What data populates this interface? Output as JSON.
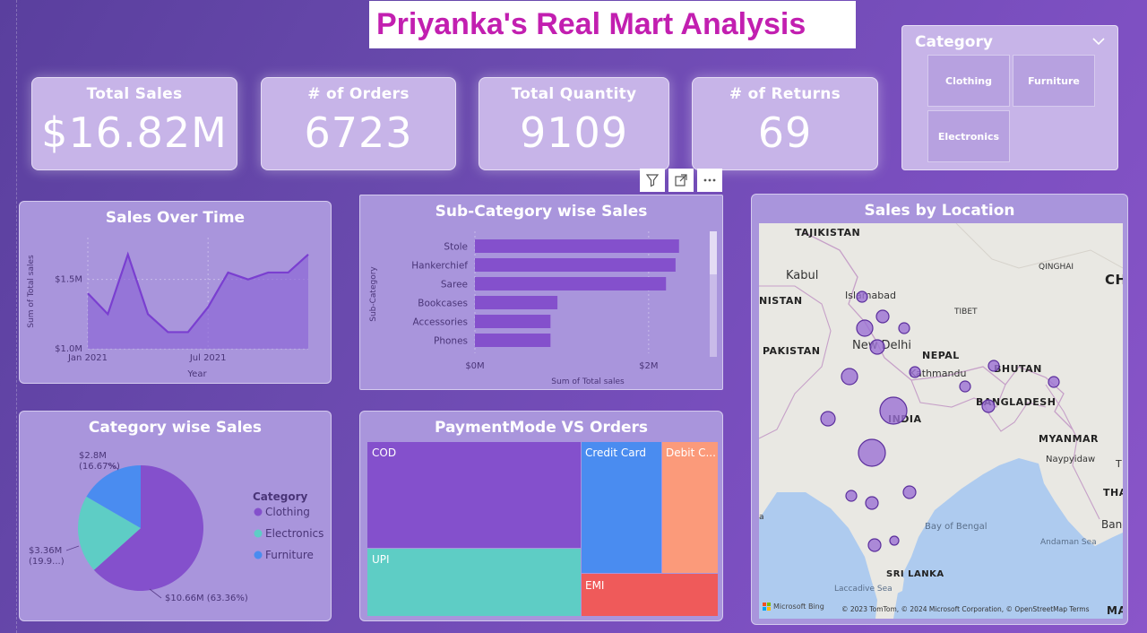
{
  "title": "Priyanka's Real Mart Analysis",
  "kpis": [
    {
      "label": "Total Sales",
      "value": "$16.82M"
    },
    {
      "label": "# of Orders",
      "value": "6723"
    },
    {
      "label": "Total Quantity",
      "value": "9109"
    },
    {
      "label": "# of Returns",
      "value": "69"
    }
  ],
  "slicer": {
    "title": "Category",
    "options": [
      "Clothing",
      "Furniture",
      "Electronics"
    ]
  },
  "sales_over_time": {
    "title": "Sales Over Time",
    "chart_data": {
      "type": "area",
      "x": [
        "2021-01",
        "2021-02",
        "2021-03",
        "2021-04",
        "2021-05",
        "2021-06",
        "2021-07",
        "2021-08",
        "2021-09",
        "2021-10",
        "2021-11",
        "2021-12"
      ],
      "values": [
        1.4,
        1.25,
        1.68,
        1.25,
        1.12,
        1.12,
        1.3,
        1.55,
        1.5,
        1.55,
        1.55,
        1.68
      ],
      "xlabel": "Year",
      "ylabel": "Sum of Total sales",
      "ytick_labels": [
        "$1.5M",
        "$1.0M"
      ],
      "ytick_values": [
        1.5,
        1.0
      ],
      "xtick_labels": [
        "Jan 2021",
        "Jul 2021"
      ],
      "xtick_index": [
        0,
        6
      ],
      "ylim": [
        1.0,
        1.75
      ],
      "color": "#8a64d6"
    }
  },
  "sub_category_sales": {
    "title": "Sub-Category wise Sales",
    "chart_data": {
      "type": "bar",
      "orientation": "horizontal",
      "categories": [
        "Stole",
        "Hankerchief",
        "Saree",
        "Bookcases",
        "Accessories",
        "Phones"
      ],
      "values": [
        2.35,
        2.31,
        2.2,
        0.95,
        0.87,
        0.87
      ],
      "xlabel": "Sum of Total sales",
      "ylabel": "Sub-Category",
      "xtick_labels": [
        "$0M",
        "$2M"
      ],
      "xtick_values": [
        0,
        2
      ],
      "xlim": [
        0,
        2.6
      ],
      "color": "#8450cc"
    }
  },
  "category_sales": {
    "title": "Category wise Sales",
    "chart_data": {
      "type": "pie",
      "legend_title": "Category",
      "categories": [
        "Clothing",
        "Electronics",
        "Furniture"
      ],
      "values": [
        10.66,
        3.36,
        2.8
      ],
      "labels": [
        "$10.66M (63.36%)",
        "$3.36M (19.9...)",
        "$2.8M (16.67%)"
      ],
      "colors": [
        "#8450cc",
        "#5ecdc5",
        "#4a8cf0"
      ],
      "legend_placement": "right"
    }
  },
  "payment_mode": {
    "title": "PaymentMode VS Orders",
    "chart_data": {
      "type": "treemap",
      "categories": [
        "COD",
        "UPI",
        "Credit Card",
        "EMI",
        "Debit C..."
      ],
      "colors": [
        "#8450cc",
        "#5ecdc5",
        "#4a8cf0",
        "#ef5a5a",
        "#fb9a7a"
      ]
    }
  },
  "sales_by_location": {
    "title": "Sales by Location",
    "labels": [
      "TAJIKISTAN",
      "Kabul",
      "NISTAN",
      "Islamabad",
      "QINGHAI",
      "CH",
      "TIBET",
      "PAKISTAN",
      "New Delhi",
      "NEPAL",
      "Kathmandu",
      "BHUTAN",
      "BANGLADESH",
      "INDIA",
      "MYANMAR",
      "Naypyidaw",
      "T",
      "THAI",
      "Bay of Bengal",
      "Bangk",
      "Andaman Sea",
      "SRI LANKA",
      "Laccadive Sea",
      "a",
      "MA"
    ],
    "attribution": "© 2023 TomTom, © 2024 Microsoft Corporation, © OpenStreetMap  Terms",
    "bing_label": "Microsoft Bing"
  }
}
